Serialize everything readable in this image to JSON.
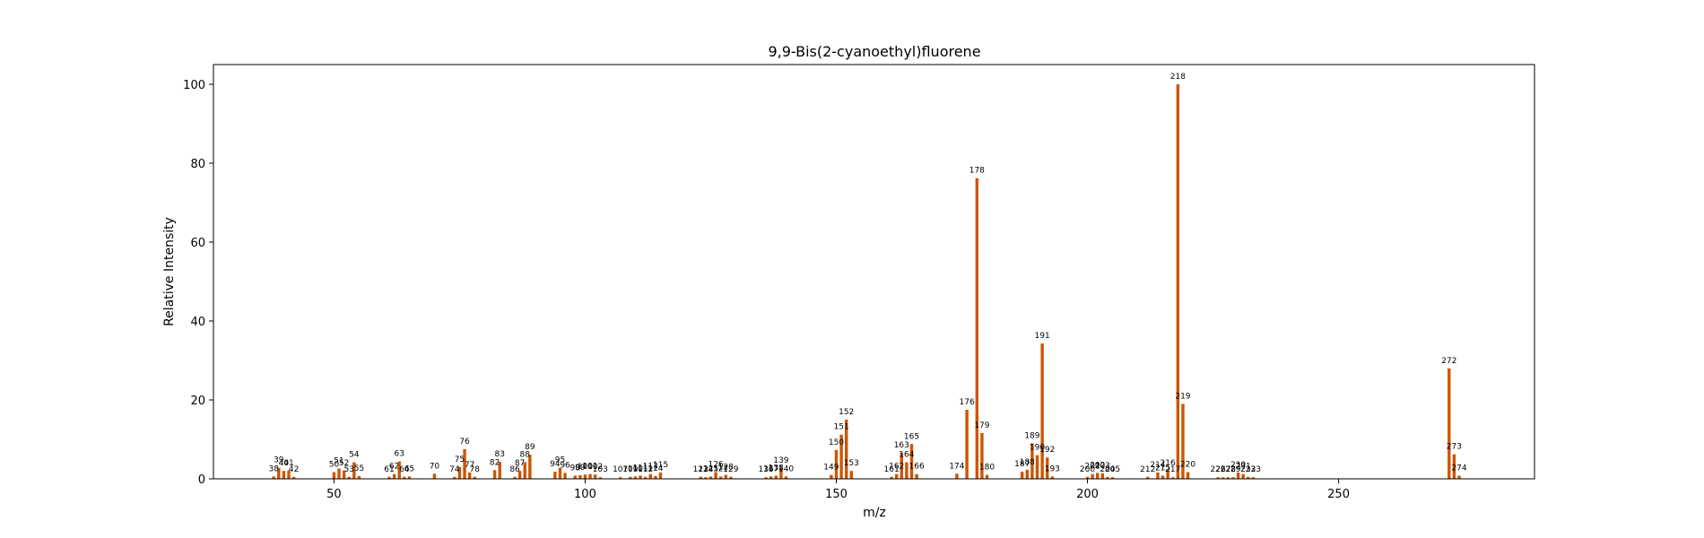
{
  "chart_data": {
    "type": "bar",
    "title": "9,9-Bis(2-cyanoethyl)fluorene",
    "xlabel": "m/z",
    "ylabel": "Relative Intensity",
    "xlim": [
      26,
      289
    ],
    "ylim": [
      0,
      105
    ],
    "xticks": [
      50,
      100,
      150,
      200,
      250
    ],
    "yticks": [
      0,
      20,
      40,
      60,
      80,
      100
    ],
    "bar_color": "#cc5500",
    "grid": false,
    "peaks": [
      {
        "mz": 38,
        "intensity": 0.6
      },
      {
        "mz": 39,
        "intensity": 2.8
      },
      {
        "mz": 40,
        "intensity": 2.0
      },
      {
        "mz": 41,
        "intensity": 2.1
      },
      {
        "mz": 42,
        "intensity": 0.5
      },
      {
        "mz": 50,
        "intensity": 1.7
      },
      {
        "mz": 51,
        "intensity": 2.6
      },
      {
        "mz": 52,
        "intensity": 2.1
      },
      {
        "mz": 53,
        "intensity": 0.5
      },
      {
        "mz": 54,
        "intensity": 4.2
      },
      {
        "mz": 55,
        "intensity": 0.7
      },
      {
        "mz": 61,
        "intensity": 0.5
      },
      {
        "mz": 62,
        "intensity": 1.2
      },
      {
        "mz": 63,
        "intensity": 4.4
      },
      {
        "mz": 64,
        "intensity": 0.5
      },
      {
        "mz": 65,
        "intensity": 0.6
      },
      {
        "mz": 70,
        "intensity": 1.3
      },
      {
        "mz": 74,
        "intensity": 0.5
      },
      {
        "mz": 75,
        "intensity": 3.0
      },
      {
        "mz": 76,
        "intensity": 7.5
      },
      {
        "mz": 77,
        "intensity": 1.6
      },
      {
        "mz": 78,
        "intensity": 0.5
      },
      {
        "mz": 82,
        "intensity": 2.2
      },
      {
        "mz": 83,
        "intensity": 4.3
      },
      {
        "mz": 86,
        "intensity": 0.5
      },
      {
        "mz": 87,
        "intensity": 2.0
      },
      {
        "mz": 88,
        "intensity": 4.2
      },
      {
        "mz": 89,
        "intensity": 6.1
      },
      {
        "mz": 94,
        "intensity": 1.8
      },
      {
        "mz": 95,
        "intensity": 2.8
      },
      {
        "mz": 96,
        "intensity": 1.5
      },
      {
        "mz": 98,
        "intensity": 0.8
      },
      {
        "mz": 99,
        "intensity": 0.9
      },
      {
        "mz": 100,
        "intensity": 1.1
      },
      {
        "mz": 101,
        "intensity": 1.2
      },
      {
        "mz": 102,
        "intensity": 1.1
      },
      {
        "mz": 103,
        "intensity": 0.4
      },
      {
        "mz": 107,
        "intensity": 0.4
      },
      {
        "mz": 109,
        "intensity": 0.5
      },
      {
        "mz": 110,
        "intensity": 0.6
      },
      {
        "mz": 111,
        "intensity": 0.8
      },
      {
        "mz": 112,
        "intensity": 0.5
      },
      {
        "mz": 113,
        "intensity": 1.2
      },
      {
        "mz": 114,
        "intensity": 0.7
      },
      {
        "mz": 115,
        "intensity": 1.6
      },
      {
        "mz": 123,
        "intensity": 0.5
      },
      {
        "mz": 124,
        "intensity": 0.4
      },
      {
        "mz": 125,
        "intensity": 0.6
      },
      {
        "mz": 126,
        "intensity": 1.7
      },
      {
        "mz": 127,
        "intensity": 0.6
      },
      {
        "mz": 128,
        "intensity": 1.0
      },
      {
        "mz": 129,
        "intensity": 0.5
      },
      {
        "mz": 136,
        "intensity": 0.4
      },
      {
        "mz": 137,
        "intensity": 0.6
      },
      {
        "mz": 138,
        "intensity": 0.8
      },
      {
        "mz": 139,
        "intensity": 2.7
      },
      {
        "mz": 140,
        "intensity": 0.6
      },
      {
        "mz": 149,
        "intensity": 1.0
      },
      {
        "mz": 150,
        "intensity": 7.3
      },
      {
        "mz": 151,
        "intensity": 11.2
      },
      {
        "mz": 152,
        "intensity": 15.0
      },
      {
        "mz": 153,
        "intensity": 2.0
      },
      {
        "mz": 161,
        "intensity": 0.5
      },
      {
        "mz": 162,
        "intensity": 1.2
      },
      {
        "mz": 163,
        "intensity": 6.6
      },
      {
        "mz": 164,
        "intensity": 4.2
      },
      {
        "mz": 165,
        "intensity": 8.8
      },
      {
        "mz": 166,
        "intensity": 1.2
      },
      {
        "mz": 174,
        "intensity": 1.3
      },
      {
        "mz": 176,
        "intensity": 17.5
      },
      {
        "mz": 178,
        "intensity": 76.2
      },
      {
        "mz": 179,
        "intensity": 11.6
      },
      {
        "mz": 180,
        "intensity": 1.0
      },
      {
        "mz": 187,
        "intensity": 1.8
      },
      {
        "mz": 188,
        "intensity": 2.3
      },
      {
        "mz": 189,
        "intensity": 9.0
      },
      {
        "mz": 190,
        "intensity": 6.0
      },
      {
        "mz": 191,
        "intensity": 34.3
      },
      {
        "mz": 192,
        "intensity": 5.4
      },
      {
        "mz": 193,
        "intensity": 0.6
      },
      {
        "mz": 200,
        "intensity": 0.5
      },
      {
        "mz": 201,
        "intensity": 1.2
      },
      {
        "mz": 202,
        "intensity": 1.5
      },
      {
        "mz": 203,
        "intensity": 1.4
      },
      {
        "mz": 204,
        "intensity": 0.5
      },
      {
        "mz": 205,
        "intensity": 0.4
      },
      {
        "mz": 212,
        "intensity": 0.5
      },
      {
        "mz": 214,
        "intensity": 1.6
      },
      {
        "mz": 215,
        "intensity": 0.8
      },
      {
        "mz": 216,
        "intensity": 2.1
      },
      {
        "mz": 217,
        "intensity": 0.4
      },
      {
        "mz": 218,
        "intensity": 100.0
      },
      {
        "mz": 219,
        "intensity": 19.0
      },
      {
        "mz": 220,
        "intensity": 1.7
      },
      {
        "mz": 226,
        "intensity": 0.4
      },
      {
        "mz": 227,
        "intensity": 0.4
      },
      {
        "mz": 228,
        "intensity": 0.4
      },
      {
        "mz": 229,
        "intensity": 0.4
      },
      {
        "mz": 230,
        "intensity": 1.6
      },
      {
        "mz": 231,
        "intensity": 1.2
      },
      {
        "mz": 232,
        "intensity": 0.5
      },
      {
        "mz": 233,
        "intensity": 0.4
      },
      {
        "mz": 272,
        "intensity": 28.0
      },
      {
        "mz": 273,
        "intensity": 6.2
      },
      {
        "mz": 274,
        "intensity": 0.8
      }
    ]
  }
}
